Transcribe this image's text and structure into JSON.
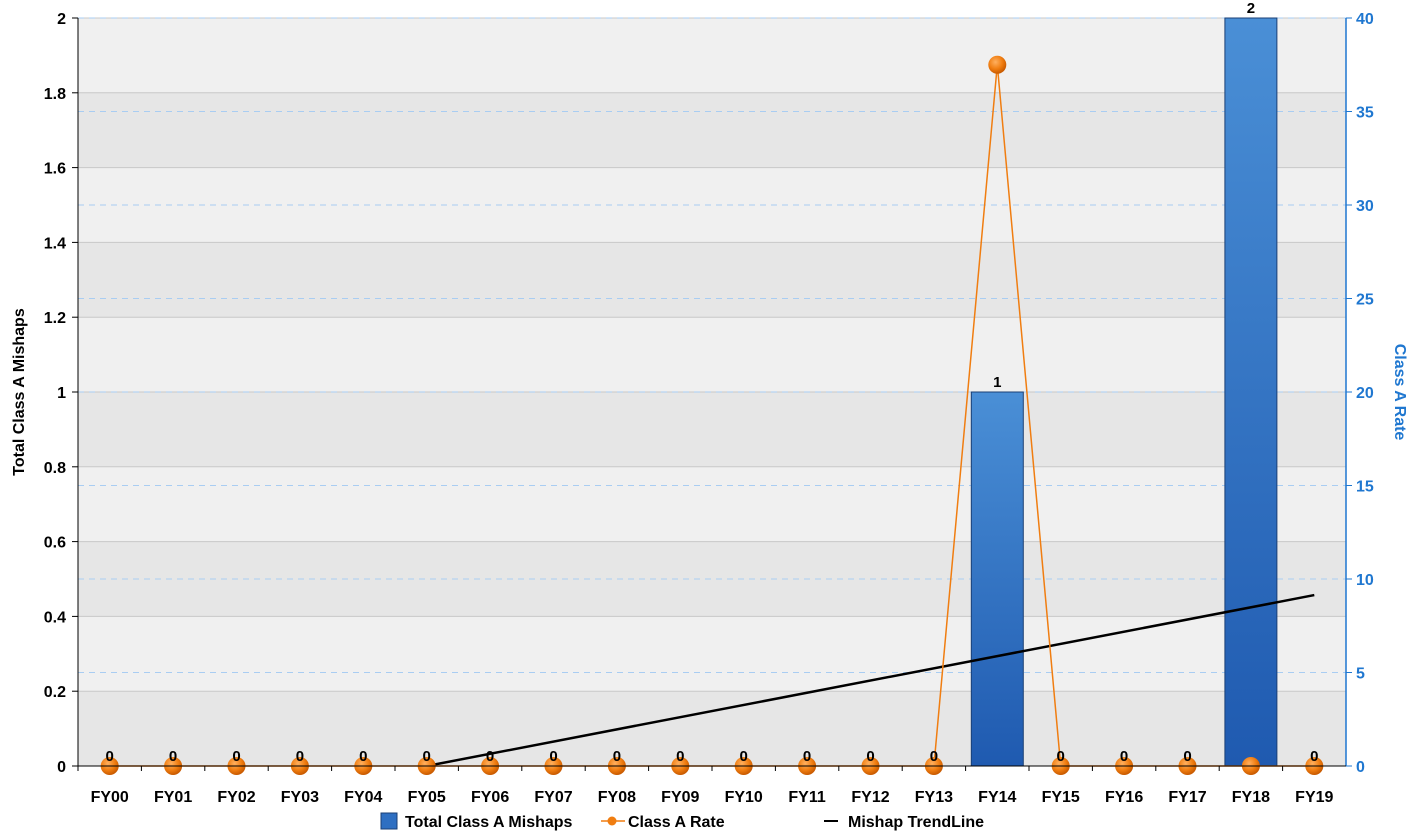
{
  "chart_data": {
    "type": "bar",
    "categories": [
      "FY00",
      "FY01",
      "FY02",
      "FY03",
      "FY04",
      "FY05",
      "FY06",
      "FY07",
      "FY08",
      "FY09",
      "FY10",
      "FY11",
      "FY12",
      "FY13",
      "FY14",
      "FY15",
      "FY16",
      "FY17",
      "FY18",
      "FY19"
    ],
    "series": [
      {
        "name": "Total Class A Mishaps",
        "type": "bar",
        "axis": "left",
        "values": [
          0,
          0,
          0,
          0,
          0,
          0,
          0,
          0,
          0,
          0,
          0,
          0,
          0,
          0,
          1,
          0,
          0,
          0,
          2,
          0
        ],
        "color": "#2e6fc2"
      },
      {
        "name": "Class A Rate",
        "type": "line",
        "axis": "right",
        "values": [
          0,
          0,
          0,
          0,
          0,
          0,
          0,
          0,
          0,
          0,
          0,
          0,
          0,
          0,
          37.5,
          0,
          0,
          0,
          0,
          0
        ],
        "color": "#f07d10"
      },
      {
        "name": "Mishap TrendLine",
        "type": "line",
        "axis": "left",
        "start": {
          "category": "FY05",
          "value": 0
        },
        "end": {
          "category": "FY19",
          "value": 0.457
        },
        "color": "#000000"
      }
    ],
    "data_labels": [
      "0",
      "0",
      "0",
      "0",
      "0",
      "0",
      "0",
      "0",
      "0",
      "0",
      "0",
      "0",
      "0",
      "0",
      "1",
      "0",
      "0",
      "0",
      "2",
      "0"
    ],
    "ylabel": "Total Class A Mishaps",
    "y2label": "Class A Rate",
    "ylim": [
      0,
      2
    ],
    "y2lim": [
      0,
      40
    ],
    "yticks": [
      "0",
      "0.2",
      "0.4",
      "0.6",
      "0.8",
      "1",
      "1.2",
      "1.4",
      "1.6",
      "1.8",
      "2"
    ],
    "y2ticks": [
      "0",
      "5",
      "10",
      "15",
      "20",
      "25",
      "30",
      "35",
      "40"
    ],
    "grid": true,
    "legend_position": "bottom",
    "colors": {
      "right_axis": "#1f77d0",
      "band_light": "#f0f0f0",
      "band_dark": "#e6e6e6"
    }
  }
}
